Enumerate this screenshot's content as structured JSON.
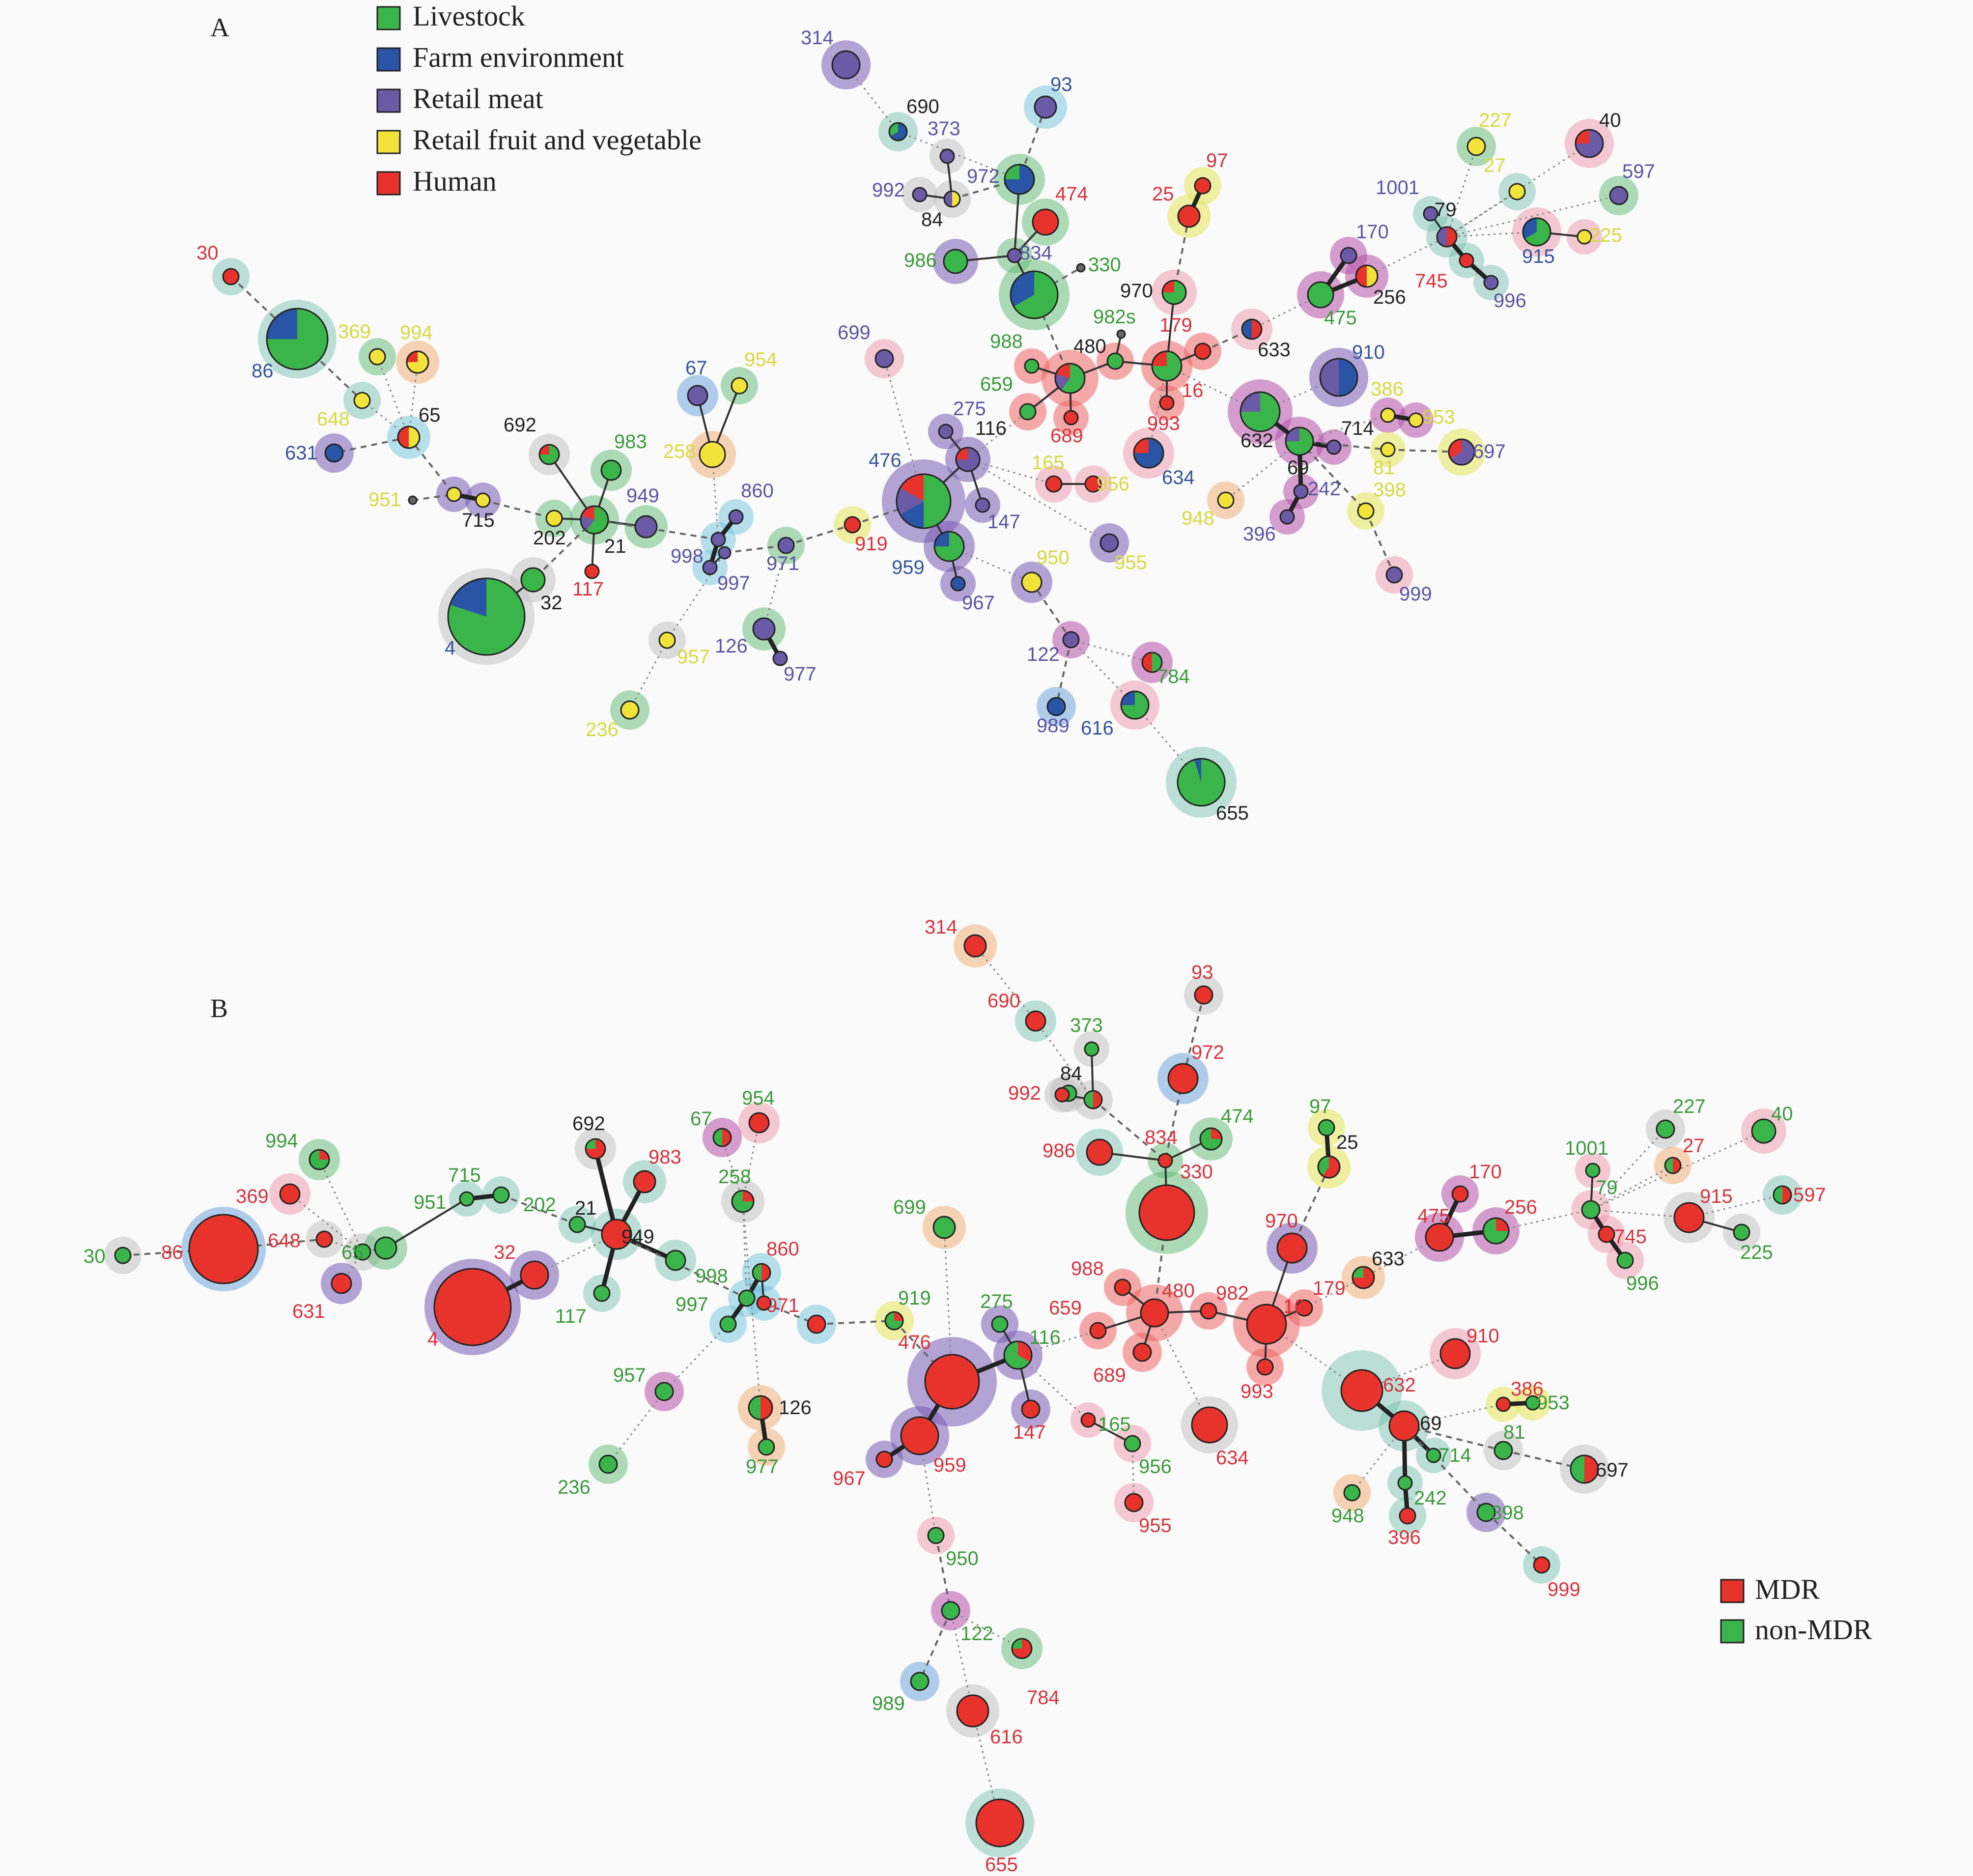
{
  "colors": {
    "livestock": "#3ab54a",
    "farm": "#2a54a5",
    "retail_meat": "#6b5aa6",
    "fruit_veg": "#f2e33a",
    "human": "#e8332d",
    "mdr": "#e8332d",
    "non_mdr": "#3ab54a"
  },
  "panelA": {
    "label": "A",
    "legend": [
      {
        "text": "Livestock",
        "color": "#3ab54a"
      },
      {
        "text": "Farm environment",
        "color": "#2a54a5"
      },
      {
        "text": "Retail meat",
        "color": "#6b5aa6"
      },
      {
        "text": "Retail fruit and vegetable",
        "color": "#f2e33a"
      },
      {
        "text": "Human",
        "color": "#e8332d"
      }
    ],
    "labels": [
      "30",
      "86",
      "369",
      "994",
      "648",
      "65",
      "631",
      "692",
      "983",
      "951",
      "715",
      "202",
      "21",
      "949",
      "117",
      "32",
      "4",
      "67",
      "954",
      "258",
      "860",
      "998",
      "997",
      "971",
      "957",
      "236",
      "126",
      "977",
      "699",
      "919",
      "476",
      "275",
      "116",
      "147",
      "959",
      "967",
      "314",
      "690",
      "373",
      "93",
      "992",
      "84",
      "972",
      "474",
      "986",
      "834",
      "330",
      "988",
      "480",
      "982",
      "659",
      "689",
      "970",
      "179",
      "97",
      "25",
      "16",
      "993",
      "634",
      "633",
      "1001",
      "79",
      "745",
      "996",
      "227",
      "27",
      "40",
      "597",
      "915",
      "225",
      "170",
      "475",
      "256",
      "910",
      "386",
      "953",
      "632",
      "714",
      "69",
      "242",
      "396",
      "697",
      "81",
      "398",
      "948",
      "999",
      "165",
      "956",
      "950",
      "955",
      "122",
      "784",
      "989",
      "616",
      "655"
    ]
  },
  "panelB": {
    "label": "B",
    "legend": [
      {
        "text": "MDR",
        "color": "#e8332d"
      },
      {
        "text": "non-MDR",
        "color": "#3ab54a"
      }
    ],
    "labels": [
      "30",
      "86",
      "648",
      "369",
      "994",
      "65",
      "631",
      "951",
      "715",
      "202",
      "21",
      "949",
      "692",
      "983",
      "117",
      "32",
      "4",
      "998",
      "997",
      "860",
      "971",
      "67",
      "954",
      "258",
      "957",
      "236",
      "126",
      "977",
      "699",
      "919",
      "476",
      "275",
      "116",
      "147",
      "959",
      "967",
      "950",
      "122",
      "784",
      "989",
      "616",
      "655",
      "314",
      "690",
      "373",
      "84",
      "992",
      "972",
      "93",
      "986",
      "834",
      "330",
      "474",
      "97",
      "25",
      "988",
      "480",
      "982",
      "659",
      "689",
      "970",
      "179",
      "16",
      "993",
      "634",
      "633",
      "170",
      "475",
      "256",
      "1001",
      "79",
      "745",
      "996",
      "227",
      "27",
      "40",
      "915",
      "597",
      "225",
      "910",
      "632",
      "69",
      "386",
      "953",
      "714",
      "81",
      "697",
      "242",
      "396",
      "948",
      "398",
      "999",
      "165",
      "956",
      "955"
    ]
  }
}
